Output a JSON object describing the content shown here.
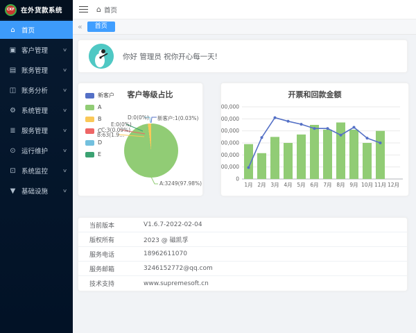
{
  "logo_text": "CKF",
  "app_title": "在外货款系统",
  "sidebar": {
    "items": [
      {
        "label": "首页",
        "icon": "home-icon",
        "active": true,
        "has_children": false
      },
      {
        "label": "客户管理",
        "icon": "customer-icon",
        "active": false,
        "has_children": true
      },
      {
        "label": "账务管理",
        "icon": "billing-icon",
        "active": false,
        "has_children": true
      },
      {
        "label": "账务分析",
        "icon": "analysis-icon",
        "active": false,
        "has_children": true
      },
      {
        "label": "系统管理",
        "icon": "gear-icon",
        "active": false,
        "has_children": true
      },
      {
        "label": "服务管理",
        "icon": "service-icon",
        "active": false,
        "has_children": true
      },
      {
        "label": "运行维护",
        "icon": "maintenance-icon",
        "active": false,
        "has_children": true
      },
      {
        "label": "系统监控",
        "icon": "monitor-icon",
        "active": false,
        "has_children": true
      },
      {
        "label": "基础设施",
        "icon": "infrastructure-icon",
        "active": false,
        "has_children": true
      }
    ]
  },
  "topbar": {
    "breadcrumb": "首页"
  },
  "tabbar": {
    "active_tab": "首页"
  },
  "greeting": {
    "text": "你好 管理员 祝你开心每一天!"
  },
  "chart_data": [
    {
      "type": "pie",
      "title": "客户等级占比",
      "legend_position": "left",
      "series": [
        {
          "name": "新客户",
          "value": 1,
          "percent": 0.03,
          "color": "#5470c6",
          "label": "新客户:1(0.03%)"
        },
        {
          "name": "A",
          "value": 3249,
          "percent": 97.98,
          "color": "#91cc75",
          "label": "A:3249(97.98%)"
        },
        {
          "name": "B",
          "value": 63,
          "percent": 1.9,
          "color": "#fac858",
          "label": "B:63(1.9..."
        },
        {
          "name": "C",
          "value": 3,
          "percent": 0.09,
          "color": "#ee6666",
          "label": "C:3(0.09%)"
        },
        {
          "name": "D",
          "value": 0,
          "percent": 0,
          "color": "#73c0de",
          "label": "D:0(0%)"
        },
        {
          "name": "E",
          "value": 0,
          "percent": 0,
          "color": "#3ba272",
          "label": "E:0(0%)"
        }
      ]
    },
    {
      "type": "bar",
      "title": "开票和回款金额",
      "categories": [
        "1月",
        "2月",
        "3月",
        "4月",
        "5月",
        "6月",
        "7月",
        "8月",
        "9月",
        "10月",
        "11月",
        "12月"
      ],
      "series": [
        {
          "type": "bar",
          "color": "#91cc75",
          "values": [
            290000,
            215000,
            350000,
            300000,
            370000,
            450000,
            410000,
            470000,
            410000,
            300000,
            400000,
            null
          ]
        },
        {
          "type": "line",
          "color": "#5470c6",
          "values": [
            95000,
            345000,
            510000,
            480000,
            455000,
            420000,
            420000,
            365000,
            430000,
            340000,
            300000,
            null
          ]
        }
      ],
      "ylim": [
        0,
        600000
      ],
      "yticks": [
        "0",
        "100,000",
        "200,000",
        "300,000",
        "400,000",
        "500,000",
        "600,000"
      ],
      "grid": true,
      "legend_position": "none"
    }
  ],
  "info": {
    "rows": [
      {
        "label": "当前版本",
        "value": "V1.6.7-2022-02-04"
      },
      {
        "label": "版权所有",
        "value": "2023 @ 磁凯孚"
      },
      {
        "label": "服务电话",
        "value": "18962611070"
      },
      {
        "label": "服务邮箱",
        "value": "3246152772@qq.com"
      },
      {
        "label": "技术支持",
        "value": "www.supremesoft.cn"
      }
    ]
  },
  "colors": {
    "accent": "#409eff",
    "sidebar_bg": "#051528",
    "avatar_bg": "#4fc8c4"
  }
}
